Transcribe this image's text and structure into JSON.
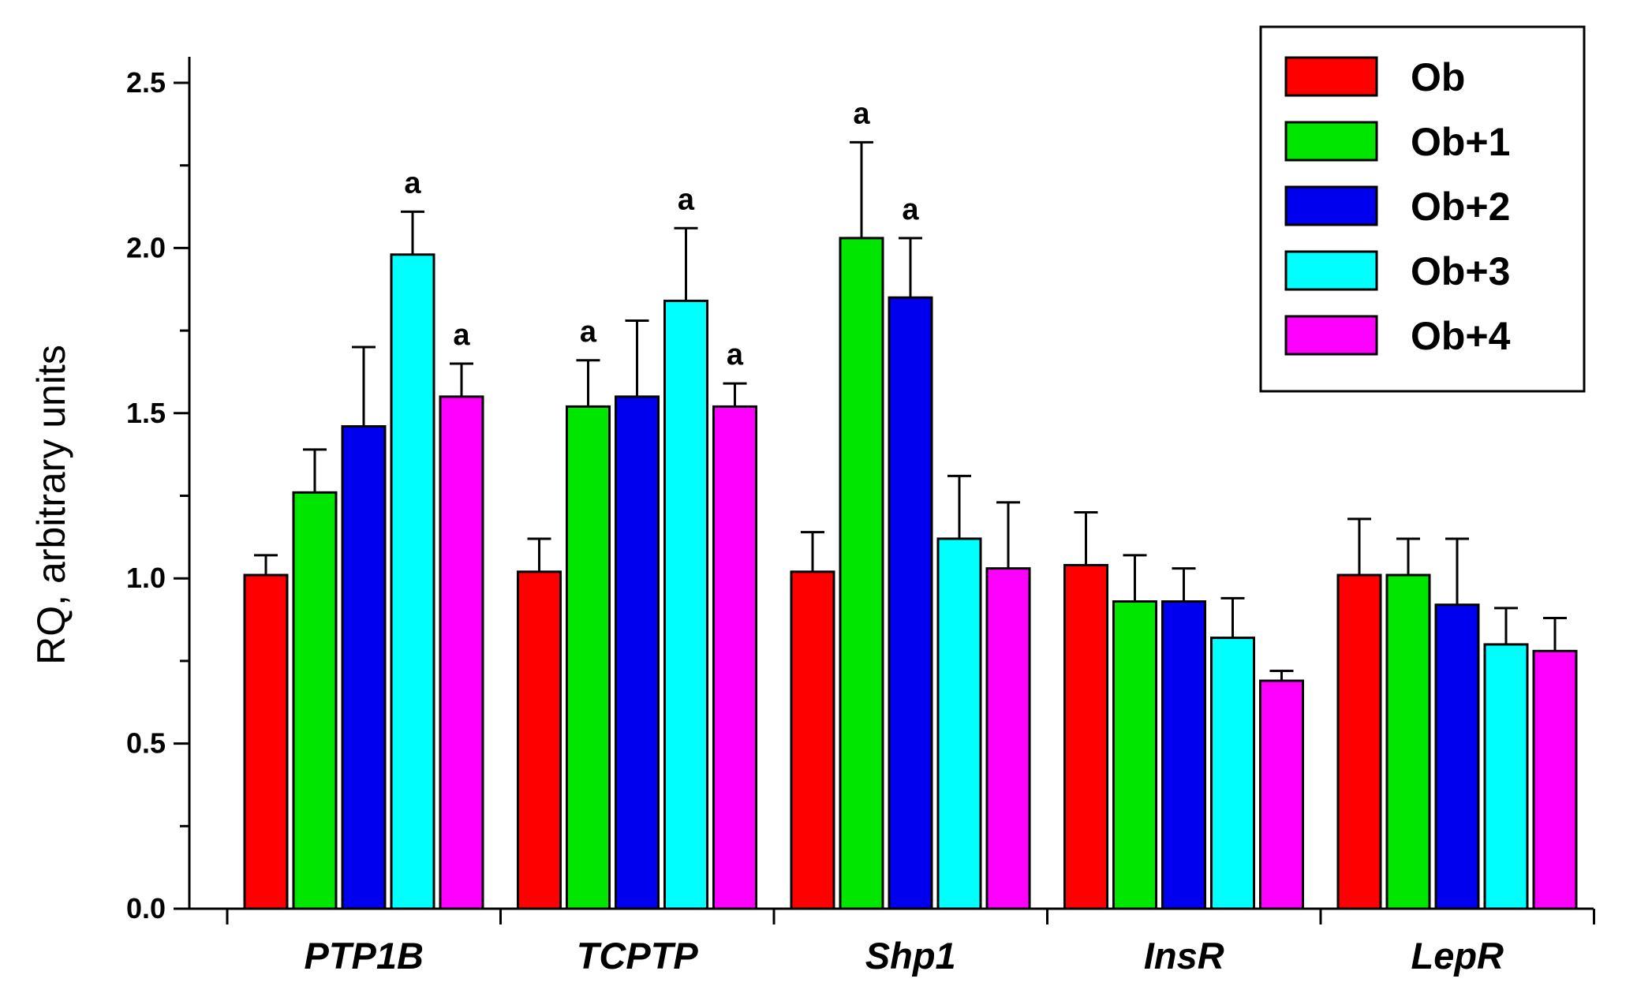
{
  "chart_data": {
    "type": "bar",
    "title": "",
    "xlabel": "",
    "ylabel": "RQ, arbitrary units",
    "ylim": [
      0,
      2.5
    ],
    "yticks": [
      "0.0",
      "0.5",
      "1.0",
      "1.5",
      "2.0",
      "2.5"
    ],
    "categories": [
      "PTP1B",
      "TCPTP",
      "Shp1",
      "InsR",
      "LepR"
    ],
    "legend_position": "top-right",
    "series": [
      {
        "name": "Ob",
        "color": "#ff0000",
        "values": [
          1.01,
          1.02,
          1.02,
          1.04,
          1.01
        ],
        "errors": [
          0.06,
          0.1,
          0.12,
          0.16,
          0.17
        ],
        "annotations": [
          "",
          "",
          "",
          "",
          ""
        ]
      },
      {
        "name": "Ob+1",
        "color": "#00e600",
        "values": [
          1.26,
          1.52,
          2.03,
          0.93,
          1.01
        ],
        "errors": [
          0.13,
          0.14,
          0.29,
          0.14,
          0.11
        ],
        "annotations": [
          "",
          "a",
          "a",
          "",
          ""
        ]
      },
      {
        "name": "Ob+2",
        "color": "#0000ee",
        "values": [
          1.46,
          1.55,
          1.85,
          0.93,
          0.92
        ],
        "errors": [
          0.24,
          0.23,
          0.18,
          0.1,
          0.2
        ],
        "annotations": [
          "",
          "",
          "a",
          "",
          ""
        ]
      },
      {
        "name": "Ob+3",
        "color": "#00ffff",
        "values": [
          1.98,
          1.84,
          1.12,
          0.82,
          0.8
        ],
        "errors": [
          0.13,
          0.22,
          0.19,
          0.12,
          0.11
        ],
        "annotations": [
          "a",
          "a",
          "",
          "",
          ""
        ]
      },
      {
        "name": "Ob+4",
        "color": "#ff00ff",
        "values": [
          1.55,
          1.52,
          1.03,
          0.69,
          0.78
        ],
        "errors": [
          0.1,
          0.07,
          0.2,
          0.03,
          0.1
        ],
        "annotations": [
          "a",
          "a",
          "",
          "",
          ""
        ]
      }
    ]
  }
}
